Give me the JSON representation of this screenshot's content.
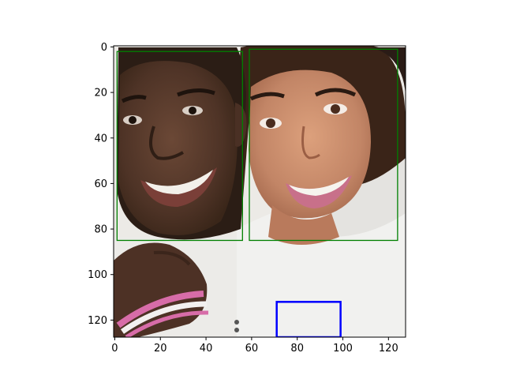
{
  "image_view": {
    "content": "pixelated photo of a smiling man and woman, cheek to cheek",
    "xlim": [
      -0.5,
      127.5
    ],
    "ylim": [
      127.5,
      -0.5
    ],
    "x_ticks": [
      0,
      20,
      40,
      60,
      80,
      100,
      120
    ],
    "y_ticks": [
      0,
      20,
      40,
      60,
      80,
      100,
      120
    ],
    "x_tick_labels": [
      "0",
      "20",
      "40",
      "60",
      "80",
      "100",
      "120"
    ],
    "y_tick_labels": [
      "0",
      "20",
      "40",
      "60",
      "80",
      "100",
      "120"
    ],
    "boxes": [
      {
        "name": "face-box-man",
        "x0": 1,
        "y0": 2,
        "x1": 56,
        "y1": 85,
        "color": "#008000"
      },
      {
        "name": "face-box-woman",
        "x0": 59,
        "y0": 1,
        "x1": 124,
        "y1": 85,
        "color": "#008000"
      },
      {
        "name": "bottom-box",
        "x0": 71,
        "y0": 112,
        "x1": 99,
        "y1": 127.5,
        "color": "#0000ff"
      }
    ],
    "colors": {
      "background": "#eceae6",
      "skin_man": "#5a3d2e",
      "skin_woman": "#c98d6c",
      "hair": "#2a1c16",
      "shirt": "#f1f1ef",
      "teeth": "#f6f4ee",
      "lips": "#c8708a",
      "bracelet_pink": "#d76ca8",
      "bracelet_white": "#f2f0ef"
    }
  }
}
